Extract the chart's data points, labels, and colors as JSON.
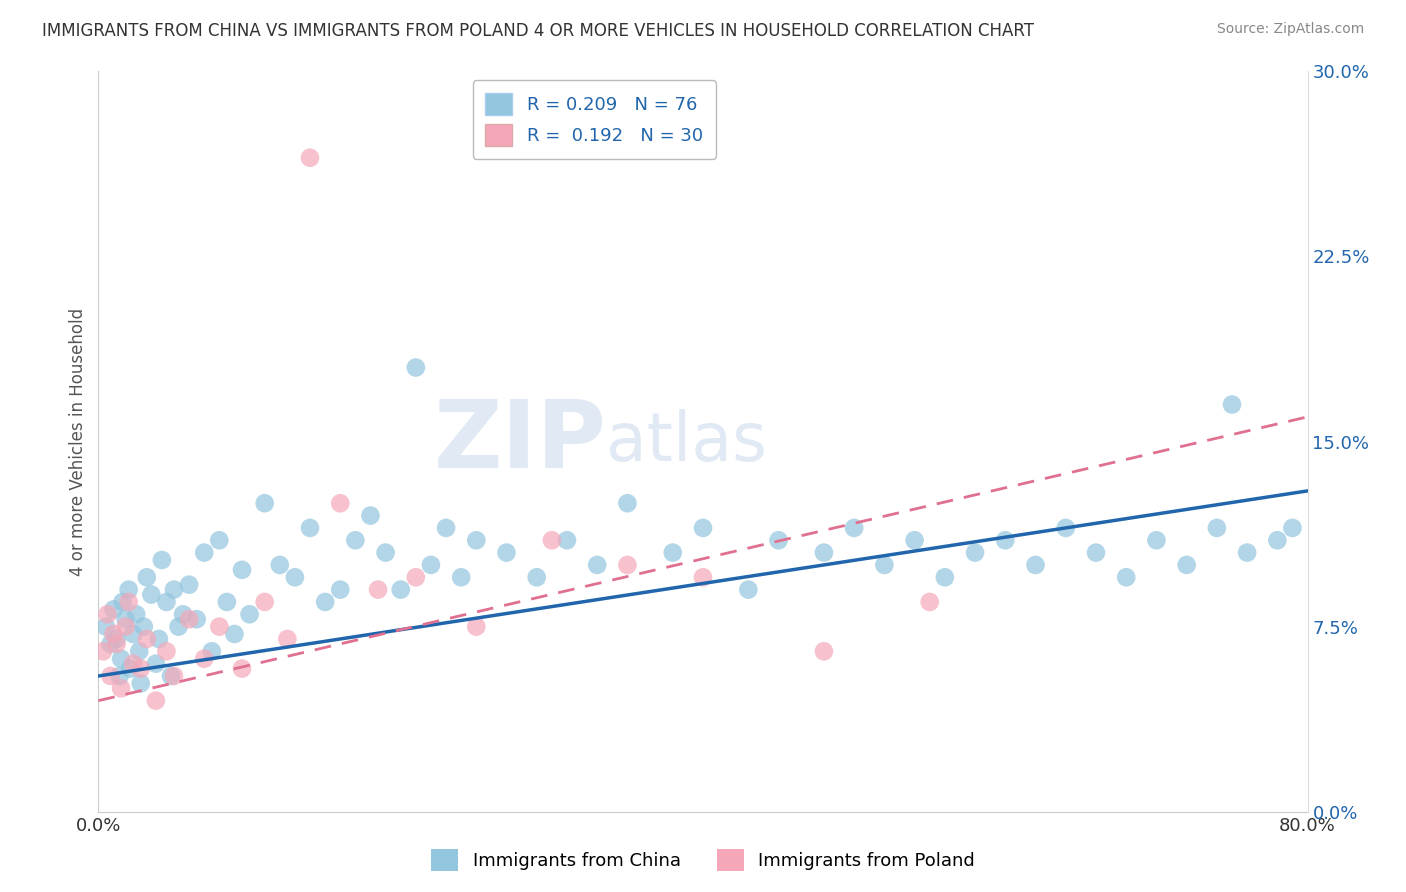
{
  "title": "IMMIGRANTS FROM CHINA VS IMMIGRANTS FROM POLAND 4 OR MORE VEHICLES IN HOUSEHOLD CORRELATION CHART",
  "source": "Source: ZipAtlas.com",
  "ylabel": "4 or more Vehicles in Household",
  "ytick_labels": [
    "0.0%",
    "7.5%",
    "15.0%",
    "22.5%",
    "30.0%"
  ],
  "ytick_values": [
    0.0,
    7.5,
    15.0,
    22.5,
    30.0
  ],
  "xlim": [
    0.0,
    80.0
  ],
  "ylim": [
    0.0,
    30.0
  ],
  "china_R": "0.209",
  "china_N": "76",
  "poland_R": "0.192",
  "poland_N": "30",
  "china_color": "#92c5de",
  "poland_color": "#f4a7b9",
  "china_line_color": "#2166ac",
  "poland_line_color": "#e07090",
  "watermark_zip": "ZIP",
  "watermark_atlas": "atlas",
  "legend_labels": [
    "Immigrants from China",
    "Immigrants from Poland"
  ],
  "china_scatter_x": [
    0.5,
    0.8,
    1.0,
    1.2,
    1.4,
    1.5,
    1.6,
    1.8,
    2.0,
    2.1,
    2.3,
    2.5,
    2.7,
    2.8,
    3.0,
    3.2,
    3.5,
    3.8,
    4.0,
    4.2,
    4.5,
    4.8,
    5.0,
    5.3,
    5.6,
    6.0,
    6.5,
    7.0,
    7.5,
    8.0,
    8.5,
    9.0,
    9.5,
    10.0,
    11.0,
    12.0,
    13.0,
    14.0,
    15.0,
    16.0,
    17.0,
    18.0,
    19.0,
    20.0,
    21.0,
    22.0,
    23.0,
    24.0,
    25.0,
    27.0,
    29.0,
    31.0,
    33.0,
    35.0,
    38.0,
    40.0,
    43.0,
    45.0,
    48.0,
    50.0,
    52.0,
    54.0,
    56.0,
    58.0,
    60.0,
    62.0,
    64.0,
    66.0,
    68.0,
    70.0,
    72.0,
    74.0,
    76.0,
    78.0,
    79.0,
    75.0
  ],
  "china_scatter_y": [
    7.5,
    6.8,
    8.2,
    7.0,
    5.5,
    6.2,
    8.5,
    7.8,
    9.0,
    5.8,
    7.2,
    8.0,
    6.5,
    5.2,
    7.5,
    9.5,
    8.8,
    6.0,
    7.0,
    10.2,
    8.5,
    5.5,
    9.0,
    7.5,
    8.0,
    9.2,
    7.8,
    10.5,
    6.5,
    11.0,
    8.5,
    7.2,
    9.8,
    8.0,
    12.5,
    10.0,
    9.5,
    11.5,
    8.5,
    9.0,
    11.0,
    12.0,
    10.5,
    9.0,
    18.0,
    10.0,
    11.5,
    9.5,
    11.0,
    10.5,
    9.5,
    11.0,
    10.0,
    12.5,
    10.5,
    11.5,
    9.0,
    11.0,
    10.5,
    11.5,
    10.0,
    11.0,
    9.5,
    10.5,
    11.0,
    10.0,
    11.5,
    10.5,
    9.5,
    11.0,
    10.0,
    11.5,
    10.5,
    11.0,
    11.5,
    16.5
  ],
  "poland_scatter_x": [
    0.3,
    0.6,
    0.8,
    1.0,
    1.2,
    1.5,
    1.8,
    2.0,
    2.3,
    2.8,
    3.2,
    3.8,
    4.5,
    5.0,
    6.0,
    7.0,
    8.0,
    9.5,
    11.0,
    12.5,
    14.0,
    16.0,
    18.5,
    21.0,
    25.0,
    30.0,
    35.0,
    40.0,
    48.0,
    55.0
  ],
  "poland_scatter_y": [
    6.5,
    8.0,
    5.5,
    7.2,
    6.8,
    5.0,
    7.5,
    8.5,
    6.0,
    5.8,
    7.0,
    4.5,
    6.5,
    5.5,
    7.8,
    6.2,
    7.5,
    5.8,
    8.5,
    7.0,
    26.5,
    12.5,
    9.0,
    9.5,
    7.5,
    11.0,
    10.0,
    9.5,
    6.5,
    8.5
  ],
  "grid_color": "#cccccc",
  "bg_color": "#ffffff"
}
